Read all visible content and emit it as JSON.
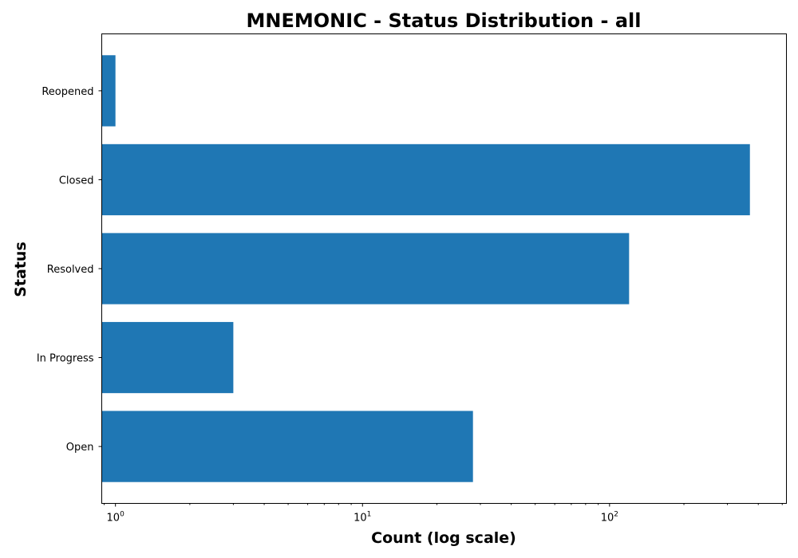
{
  "chart_data": {
    "type": "bar",
    "orientation": "horizontal",
    "title": "MNEMONIC - Status Distribution - all",
    "xlabel": "Count (log scale)",
    "ylabel": "Status",
    "x_scale": "log",
    "xlim": [
      0.88,
      520
    ],
    "x_major_ticks": [
      {
        "value": 1,
        "base": "10",
        "exp": "0"
      },
      {
        "value": 10,
        "base": "10",
        "exp": "1"
      },
      {
        "value": 100,
        "base": "10",
        "exp": "2"
      }
    ],
    "categories": [
      "Open",
      "In Progress",
      "Resolved",
      "Closed",
      "Reopened"
    ],
    "values": [
      28,
      3,
      120,
      370,
      1
    ],
    "bar_color": "#1f77b4",
    "grid": false,
    "legend": "none"
  }
}
